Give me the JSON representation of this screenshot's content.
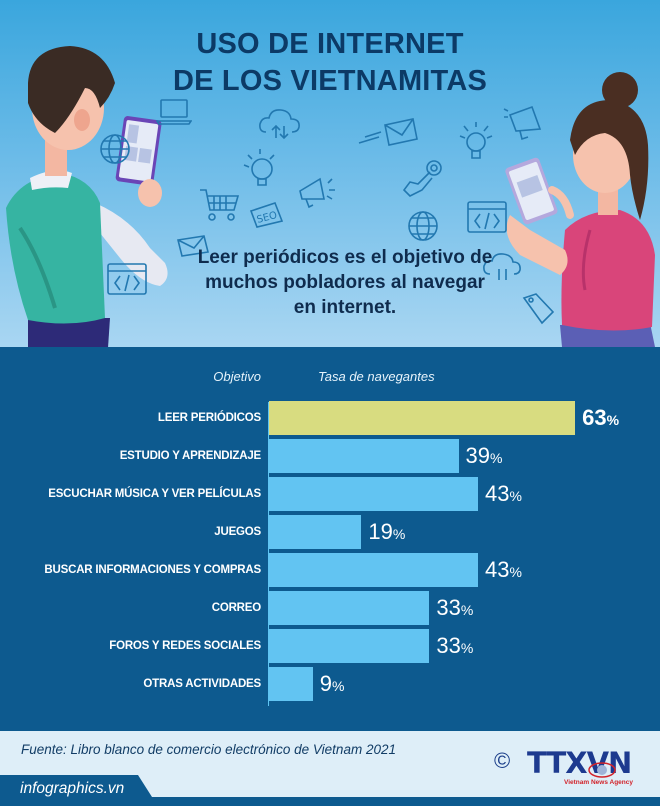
{
  "header": {
    "title_lines": [
      "USO DE INTERNET",
      "DE LOS VIETNAMITAS"
    ],
    "subtitle_lines": [
      "Leer periódicos es el objetivo de",
      "muchos pobladores al navegar",
      "en internet."
    ],
    "illustration_icons": [
      "laptop-icon",
      "cloud-sync-icon",
      "lightbulb-icon",
      "megaphone-icon",
      "shopping-cart-icon",
      "seo-tag-icon",
      "envelope-icon",
      "globe-icon",
      "code-window-icon",
      "pointing-hand-icon"
    ]
  },
  "chart": {
    "column_headers": {
      "objective": "Objetivo",
      "rate": "Tasa de navegantes"
    },
    "percent_sign": "%",
    "rows": [
      {
        "label": "LEER PERIÓDICOS",
        "value": "63",
        "highlight": true
      },
      {
        "label": "ESTUDIO Y APRENDIZAJE",
        "value": "39",
        "highlight": false
      },
      {
        "label": "ESCUCHAR MÚSICA Y VER PELÍCULAS",
        "value": "43",
        "highlight": false
      },
      {
        "label": "JUEGOS",
        "value": "19",
        "highlight": false
      },
      {
        "label": "BUSCAR INFORMACIONES Y COMPRAS",
        "value": "43",
        "highlight": false
      },
      {
        "label": "CORREO",
        "value": "33",
        "highlight": false
      },
      {
        "label": "FOROS Y REDES SOCIALES",
        "value": "33",
        "highlight": false
      },
      {
        "label": "OTRAS ACTIVIDADES",
        "value": "9",
        "highlight": false
      }
    ],
    "colors": {
      "panel": "#0d5a8f",
      "bar": "#62c4f2",
      "highlight_bar": "#d8dc80",
      "axis": "#5ec4f2"
    }
  },
  "chart_data": {
    "type": "bar",
    "orientation": "horizontal",
    "title": "USO DE INTERNET DE LOS VIETNAMITAS",
    "subtitle": "Leer periódicos es el objetivo de muchos pobladores al navegar en internet.",
    "categories": [
      "LEER PERIÓDICOS",
      "ESTUDIO Y APRENDIZAJE",
      "ESCUCHAR MÚSICA Y VER PELÍCULAS",
      "JUEGOS",
      "BUSCAR INFORMACIONES Y COMPRAS",
      "CORREO",
      "FOROS Y REDES SOCIALES",
      "OTRAS ACTIVIDADES"
    ],
    "values": [
      63,
      39,
      43,
      19,
      43,
      33,
      33,
      9
    ],
    "unit": "%",
    "xlabel": "Tasa de navegantes",
    "ylabel": "Objetivo",
    "highlighted_category": "LEER PERIÓDICOS",
    "grid": false,
    "legend": null,
    "source": "Fuente: Libro blanco de comercio electrónico de Vietnam 2021"
  },
  "footer": {
    "source": "Fuente: Libro blanco de comercio electrónico de Vietnam 2021",
    "brand": "infographics.vn",
    "copyright_symbol": "©",
    "logo_text": "TTXVN",
    "logo_subtext": "Vietnam News Agency"
  }
}
